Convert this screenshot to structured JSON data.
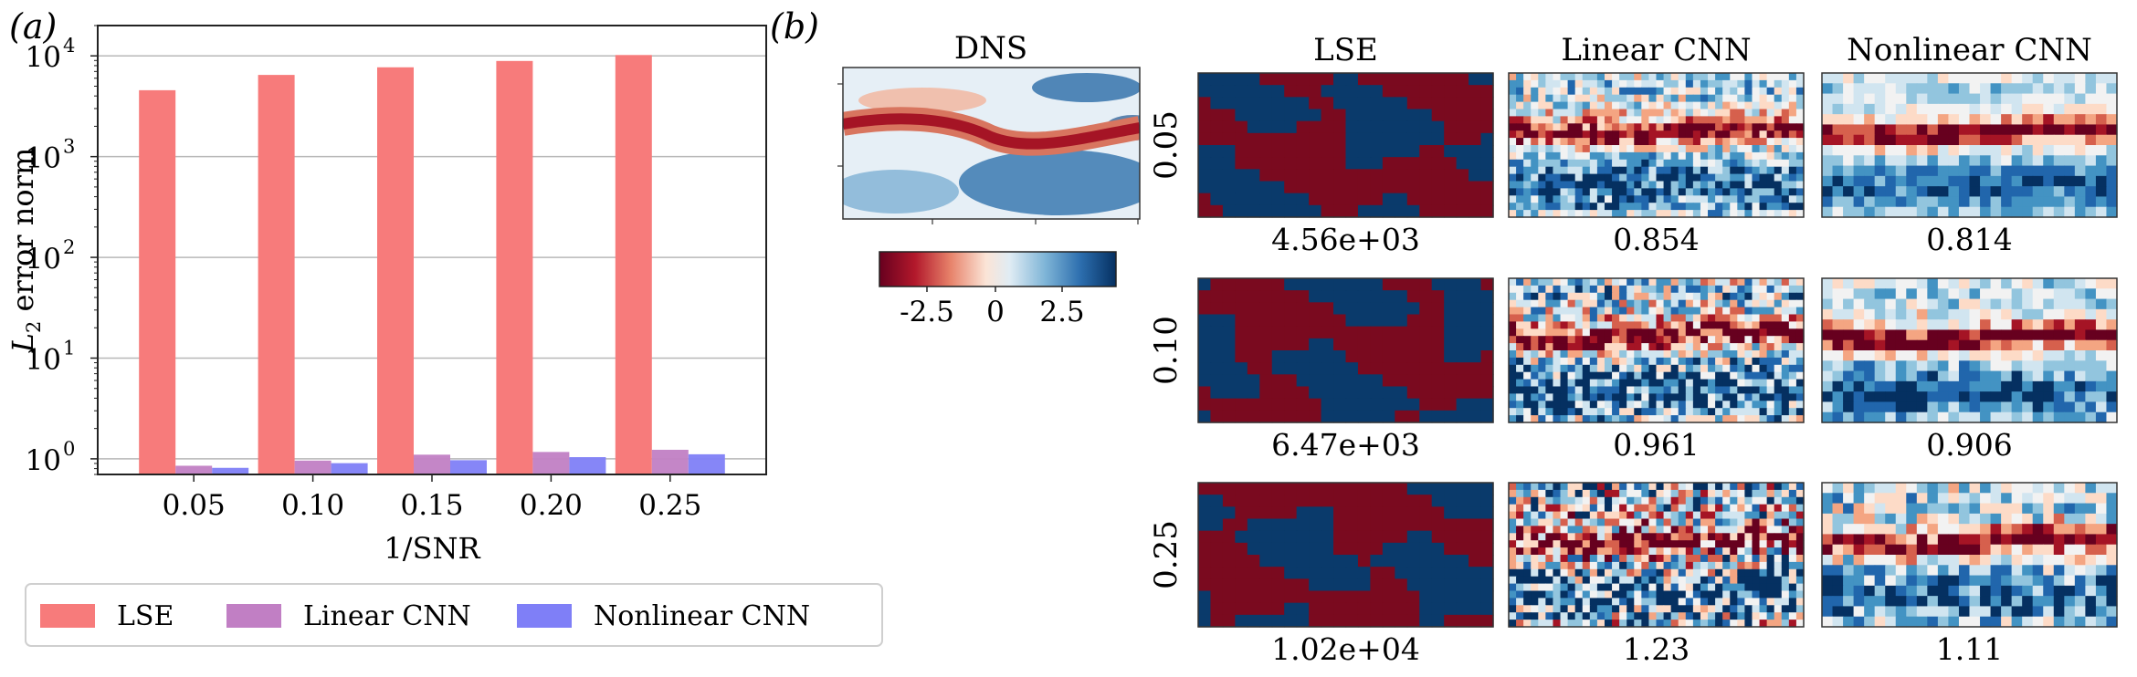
{
  "panel_labels": {
    "a": "(a)",
    "b": "(b)"
  },
  "chart_data": [
    {
      "type": "bar",
      "yscale": "log",
      "ylim": [
        0.7,
        20000
      ],
      "categories": [
        "0.05",
        "0.10",
        "0.15",
        "0.20",
        "0.25"
      ],
      "xlabel": "1/SNR",
      "ylabel": "L2 error norm",
      "yticks": [
        {
          "value": 1,
          "label": "10",
          "exp": "0"
        },
        {
          "value": 10,
          "label": "10",
          "exp": "1"
        },
        {
          "value": 100,
          "label": "10",
          "exp": "2"
        },
        {
          "value": 1000,
          "label": "10",
          "exp": "3"
        },
        {
          "value": 10000,
          "label": "10",
          "exp": "4"
        }
      ],
      "grid": true,
      "legend_position": "bottom",
      "series": [
        {
          "name": "LSE",
          "color": "#f77b7b",
          "values": [
            4560,
            6470,
            7700,
            8900,
            10200
          ]
        },
        {
          "name": "Linear CNN",
          "color": "#c17fc4",
          "values": [
            0.854,
            0.961,
            1.1,
            1.17,
            1.23
          ]
        },
        {
          "name": "Nonlinear CNN",
          "color": "#7f7ff7",
          "values": [
            0.814,
            0.906,
            0.97,
            1.04,
            1.11
          ]
        }
      ]
    },
    {
      "type": "heatmap",
      "reference_title": "DNS",
      "colorbar": {
        "ticks": [
          "-2.5",
          "0",
          "2.5"
        ],
        "colormap": "RdBu",
        "low_color": "#67001f",
        "high_color": "#053061"
      },
      "column_titles": [
        "LSE",
        "Linear CNN",
        "Nonlinear CNN"
      ],
      "rows": [
        {
          "label": "0.05",
          "errors": [
            "4.56e+03",
            "0.854",
            "0.814"
          ]
        },
        {
          "label": "0.10",
          "errors": [
            "6.47e+03",
            "0.961",
            "0.906"
          ]
        },
        {
          "label": "0.25",
          "errors": [
            "1.02e+04",
            "1.23",
            "1.11"
          ]
        }
      ]
    }
  ]
}
